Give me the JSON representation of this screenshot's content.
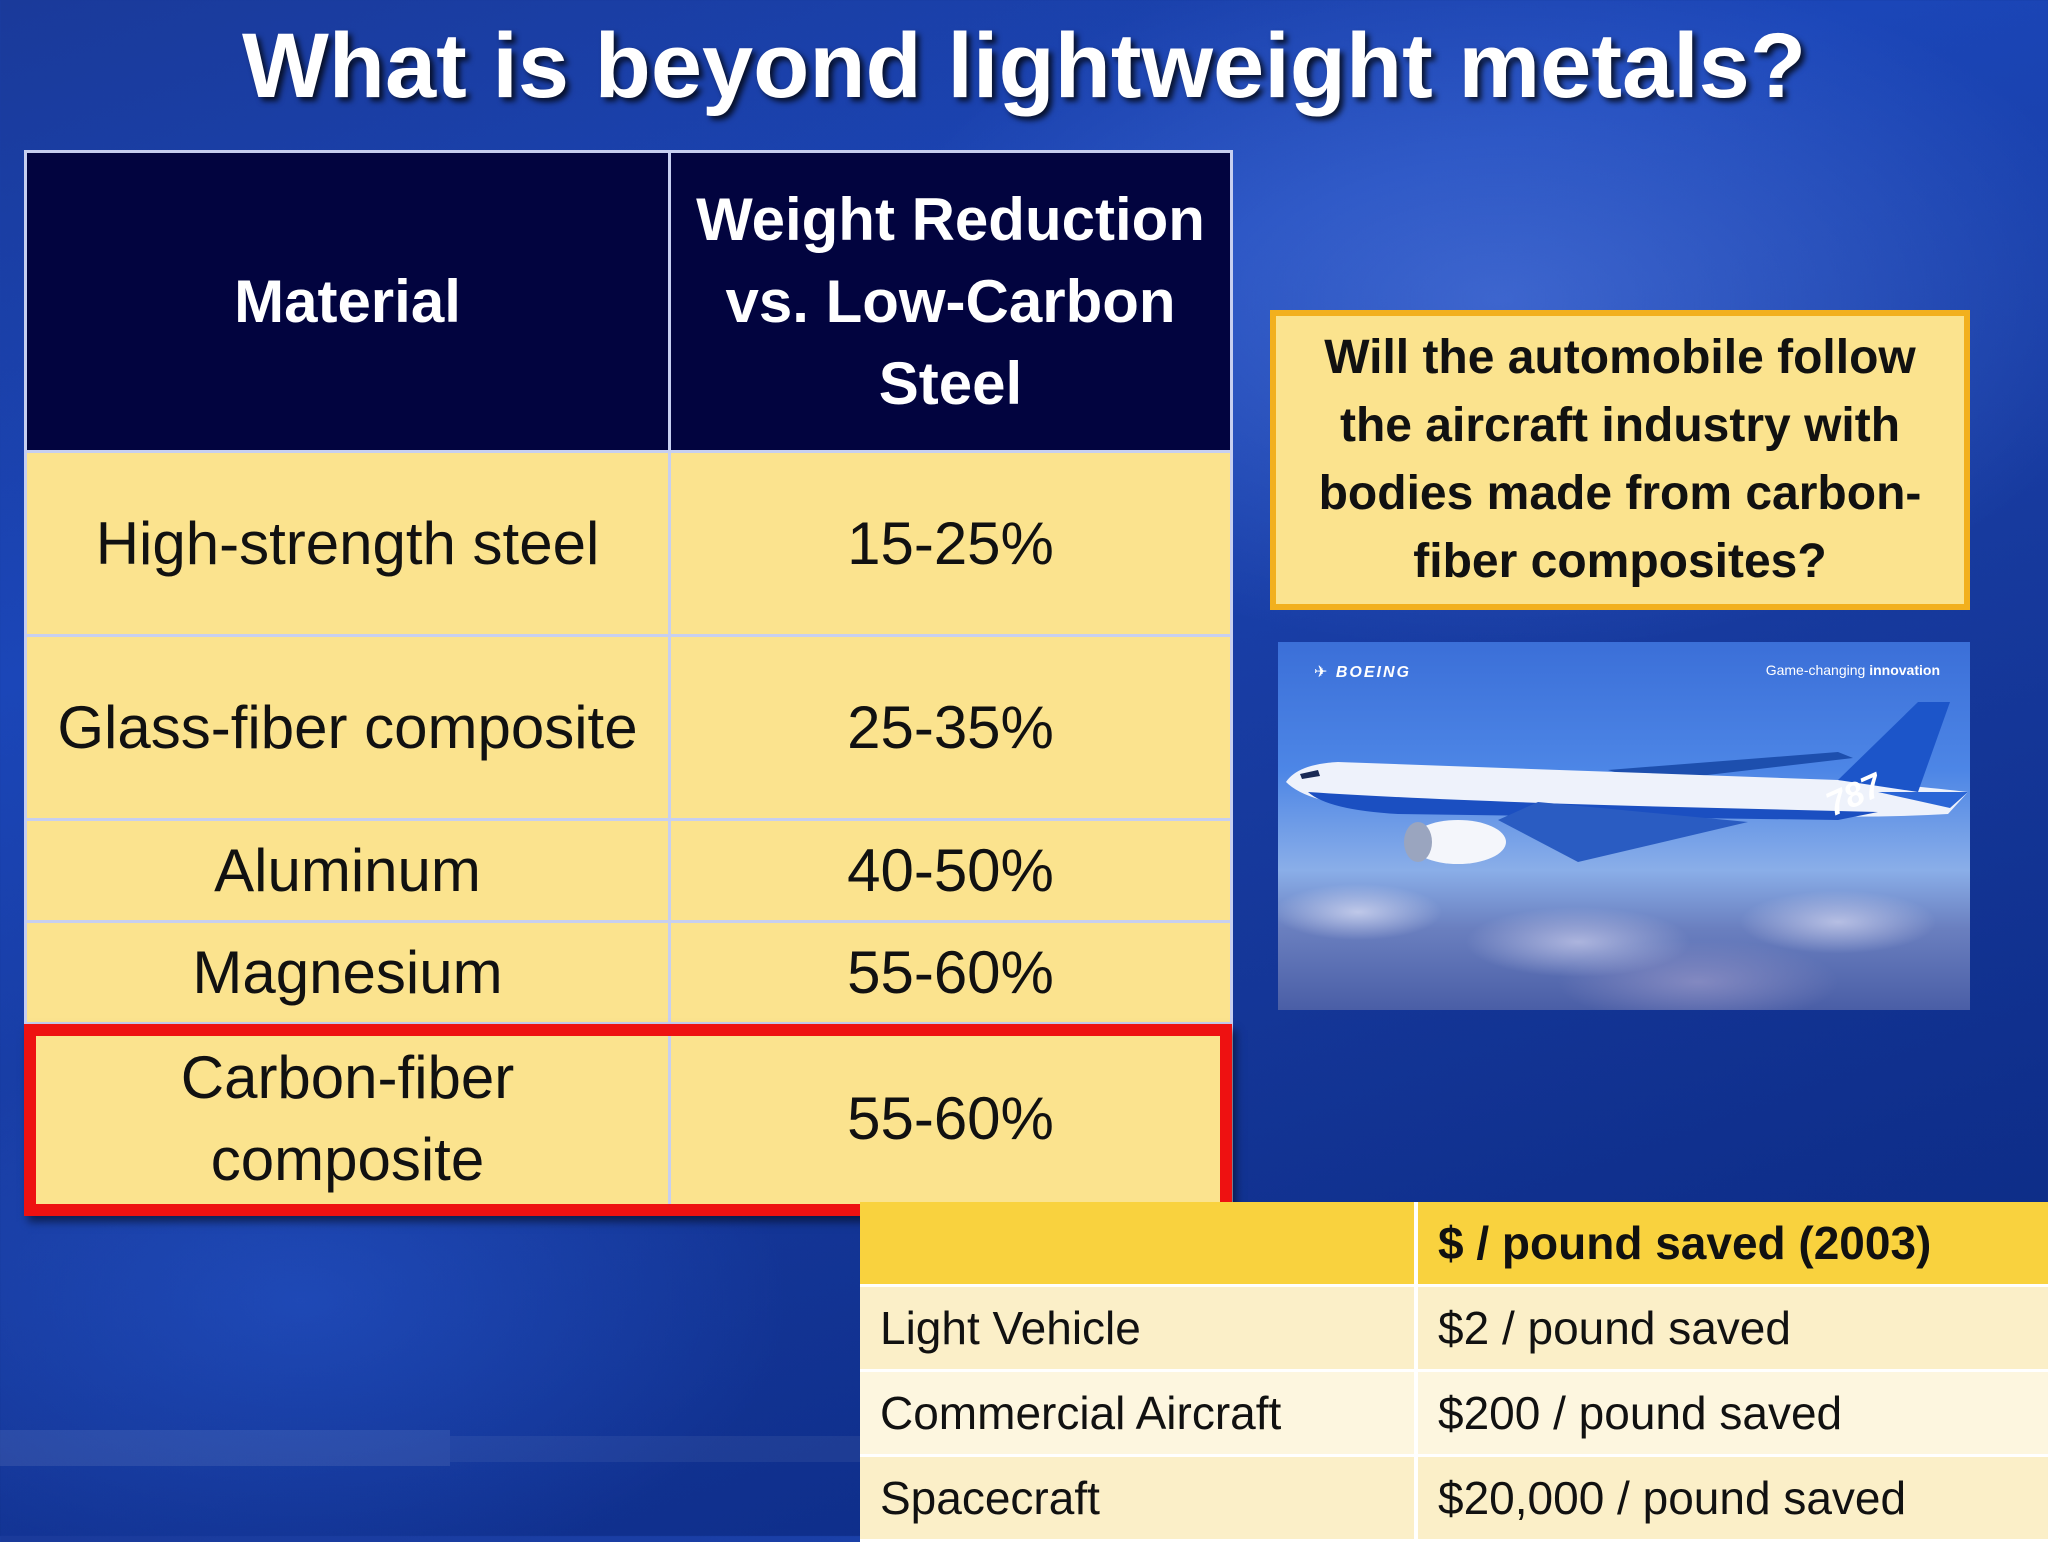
{
  "slide": {
    "title": "What is beyond lightweight metals?"
  },
  "materials_table": {
    "headers": [
      "Material",
      "Weight Reduction vs. Low-Carbon Steel"
    ],
    "rows": [
      {
        "material": "High-strength steel",
        "reduction": "15-25%"
      },
      {
        "material": "Glass-fiber composite",
        "reduction": "25-35%"
      },
      {
        "material": "Aluminum",
        "reduction": "40-50%"
      },
      {
        "material": "Magnesium",
        "reduction": "55-60%"
      },
      {
        "material": "Carbon-fiber composite",
        "reduction": "55-60%"
      }
    ],
    "highlight_color": "#ee1111"
  },
  "question_box": {
    "text": "Will the automobile follow the aircraft industry with bodies made from carbon-fiber composites?"
  },
  "photo": {
    "brand": "BOEING",
    "tagline_prefix": "Game-changing ",
    "tagline_bold": "innovation",
    "tail_number": "787"
  },
  "cost_table": {
    "header": [
      "",
      "$ / pound saved (2003)"
    ],
    "rows": [
      {
        "category": "Light Vehicle",
        "cost": "$2 / pound saved"
      },
      {
        "category": "Commercial Aircraft",
        "cost": "$200 / pound saved"
      },
      {
        "category": "Spacecraft",
        "cost": "$20,000 / pound saved"
      }
    ]
  },
  "colors": {
    "header_navy": "#02043f",
    "cell_yellow": "#fbe38e",
    "accent_gold": "#f2b01e",
    "cost_header": "#f9d23e"
  }
}
